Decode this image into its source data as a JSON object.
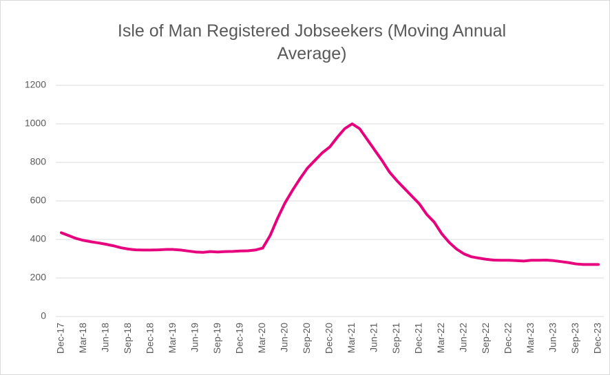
{
  "chart_data": {
    "type": "line",
    "title": "Isle of Man Registered Jobseekers (Moving Annual Average)",
    "categories": [
      "Dec-17",
      null,
      null,
      "Mar-18",
      null,
      null,
      "Jun-18",
      null,
      null,
      "Sep-18",
      null,
      null,
      "Dec-18",
      null,
      null,
      "Mar-19",
      null,
      null,
      "Jun-19",
      null,
      null,
      "Sep-19",
      null,
      null,
      "Dec-19",
      null,
      null,
      "Mar-20",
      null,
      null,
      "Jun-20",
      null,
      null,
      "Sep-20",
      null,
      null,
      "Dec-20",
      null,
      null,
      "Mar-21",
      null,
      null,
      "Jun-21",
      null,
      null,
      "Sep-21",
      null,
      null,
      "Dec-21",
      null,
      null,
      "Mar-22",
      null,
      null,
      "Jun-22",
      null,
      null,
      "Sep-22",
      null,
      null,
      "Dec-22",
      null,
      null,
      "Mar-23",
      null,
      null,
      "Jun-23",
      null,
      null,
      "Sep-23",
      null,
      null,
      "Dec-23"
    ],
    "values": [
      435,
      420,
      405,
      395,
      388,
      382,
      375,
      367,
      357,
      350,
      346,
      345,
      345,
      346,
      348,
      348,
      345,
      340,
      335,
      333,
      337,
      335,
      337,
      338,
      340,
      341,
      345,
      355,
      420,
      510,
      590,
      655,
      715,
      770,
      810,
      850,
      880,
      930,
      975,
      1000,
      975,
      920,
      865,
      810,
      750,
      705,
      665,
      625,
      585,
      530,
      490,
      430,
      385,
      350,
      325,
      310,
      303,
      297,
      293,
      292,
      292,
      290,
      288,
      292,
      292,
      293,
      290,
      285,
      280,
      273,
      270,
      270,
      270
    ],
    "color": "#e6007e",
    "ylim": [
      0,
      1200
    ],
    "yticks": [
      0,
      200,
      400,
      600,
      800,
      1000,
      1200
    ],
    "grid": true
  }
}
